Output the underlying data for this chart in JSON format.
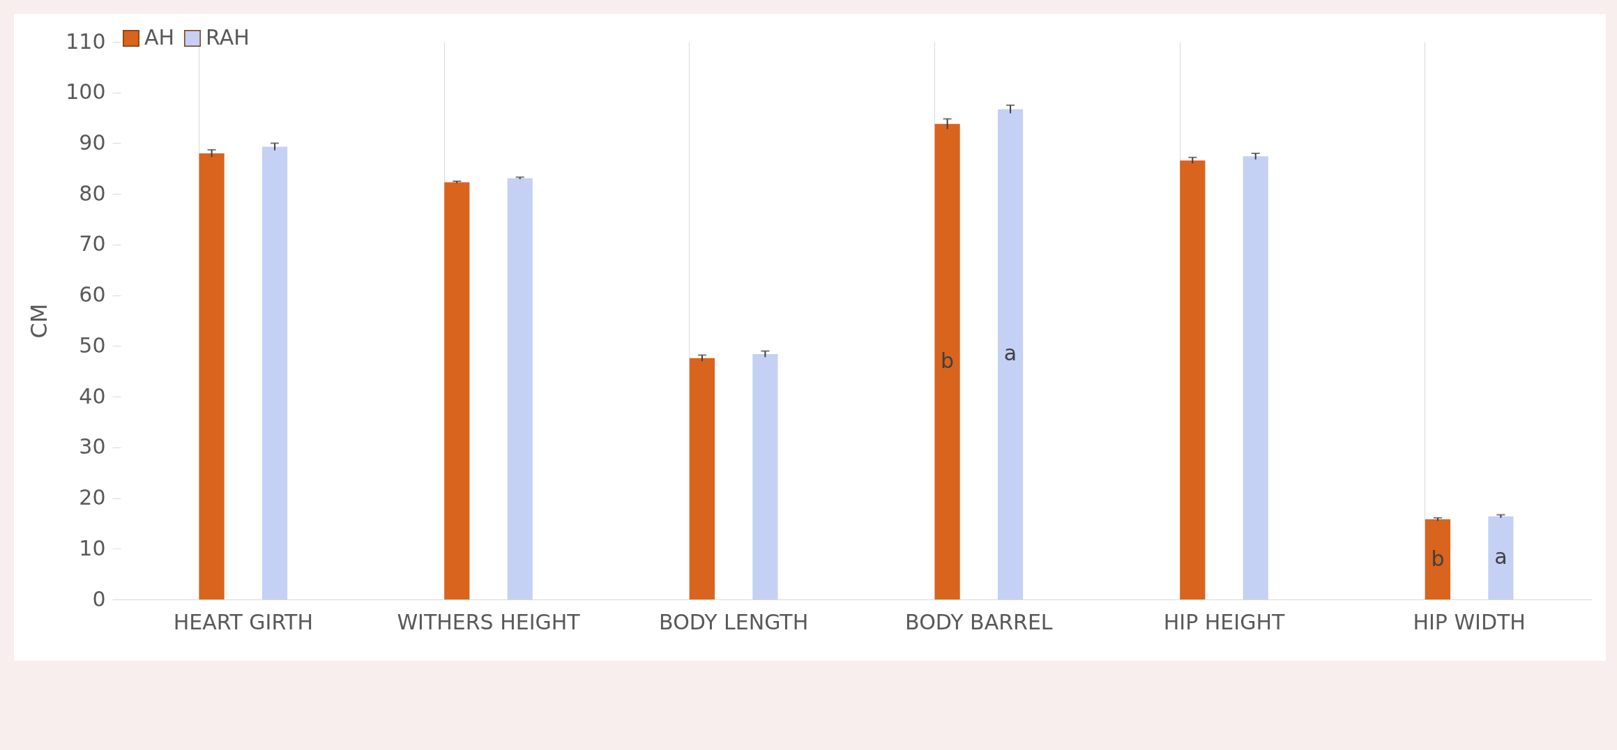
{
  "chart_data": {
    "type": "bar",
    "ylabel": "CM",
    "categories": [
      "HEART GIRTH",
      "WITHERS HEIGHT",
      "BODY LENGTH",
      "BODY BARREL",
      "HIP HEIGHT",
      "HIP WIDTH"
    ],
    "series": [
      {
        "name": "AH",
        "color": "#d9641e",
        "values": [
          88,
          82.3,
          47.6,
          93.8,
          86.6,
          15.8
        ],
        "errors": [
          0.7,
          0.2,
          0.6,
          1,
          0.6,
          0.3
        ],
        "value_labels": [
          null,
          null,
          null,
          "b",
          null,
          "b"
        ]
      },
      {
        "name": "RAH",
        "color": "#c5d0f5",
        "values": [
          89.3,
          83.1,
          48.4,
          96.7,
          87.4,
          16.4
        ],
        "errors": [
          0.7,
          0.2,
          0.6,
          0.8,
          0.6,
          0.3
        ],
        "value_labels": [
          null,
          null,
          null,
          "a",
          null,
          "a"
        ]
      }
    ],
    "ylim": [
      0,
      110
    ],
    "yticks": [
      0,
      10,
      20,
      30,
      40,
      50,
      60,
      70,
      80,
      90,
      100,
      110
    ],
    "grid": "x",
    "legend": "top"
  }
}
